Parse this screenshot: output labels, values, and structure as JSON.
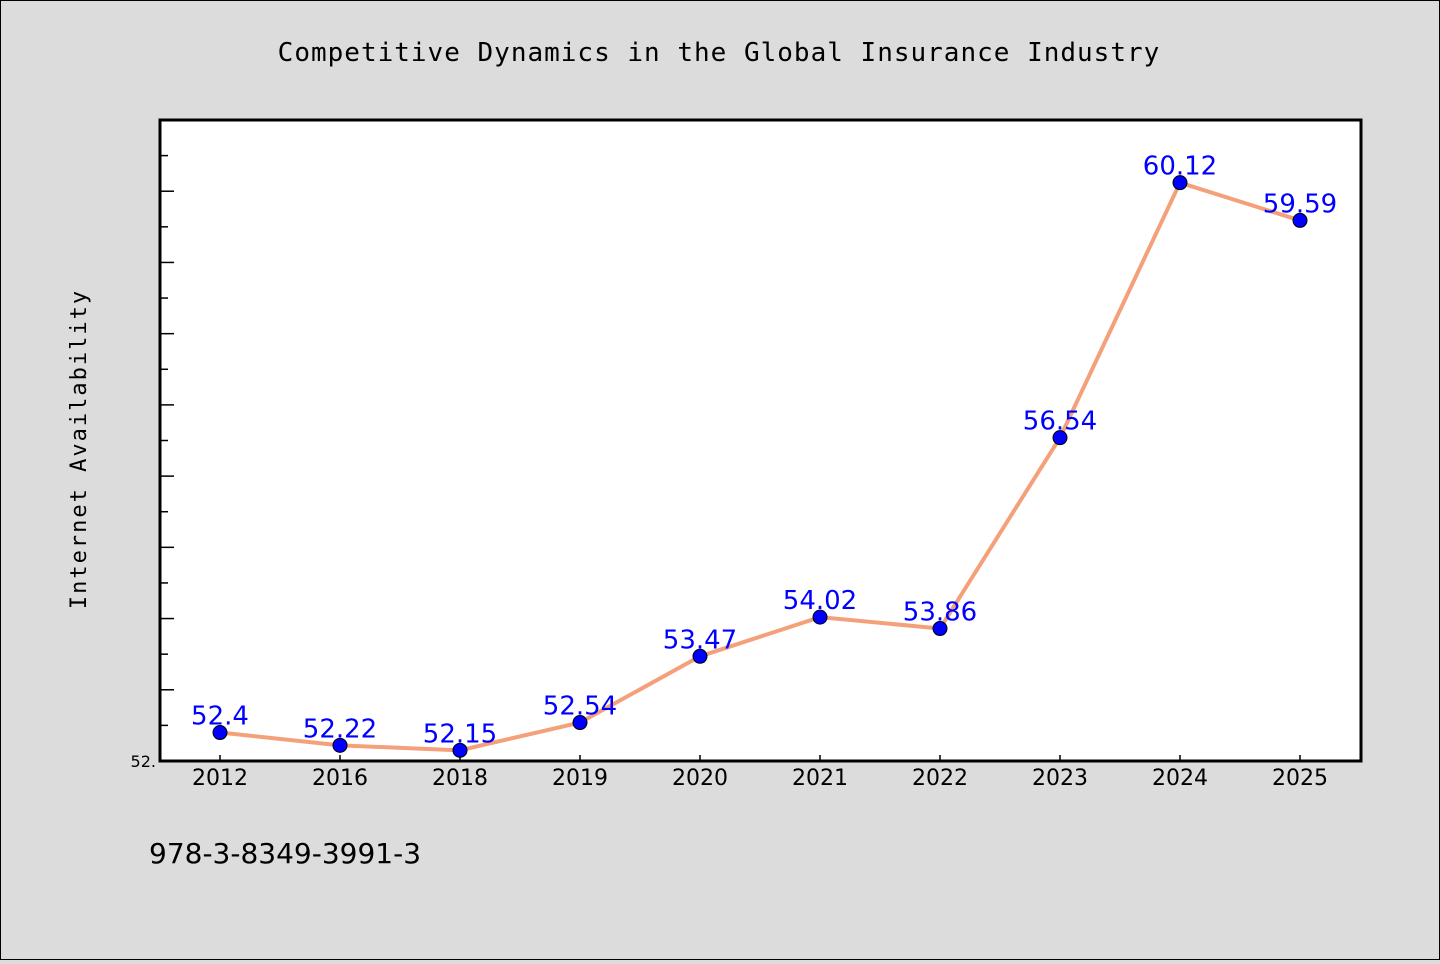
{
  "chart_data": {
    "type": "line",
    "title": "Competitive Dynamics in the Global Insurance Industry",
    "xlabel": "",
    "ylabel": "Internet Availability",
    "categories": [
      "2012",
      "2016",
      "2018",
      "2019",
      "2020",
      "2021",
      "2022",
      "2023",
      "2024",
      "2025"
    ],
    "values": [
      52.4,
      52.22,
      52.15,
      52.54,
      53.47,
      54.02,
      53.86,
      56.54,
      60.12,
      59.59
    ],
    "data_labels": [
      "52.4",
      "52.22",
      "52.15",
      "52.54",
      "53.47",
      "54.02",
      "53.86",
      "56.54",
      "60.12",
      "59.59"
    ],
    "ylim": [
      52.0,
      61.0
    ],
    "y_tick_labels": [
      "52."
    ],
    "grid": false,
    "line_color": "#f4a07a",
    "marker_color": "#0000ff",
    "label_color": "#0000ff",
    "plot_background": "#ffffff",
    "figure_background": "#dcdcdc"
  },
  "footer": {
    "isbn": "978-3-8349-3991-3"
  }
}
